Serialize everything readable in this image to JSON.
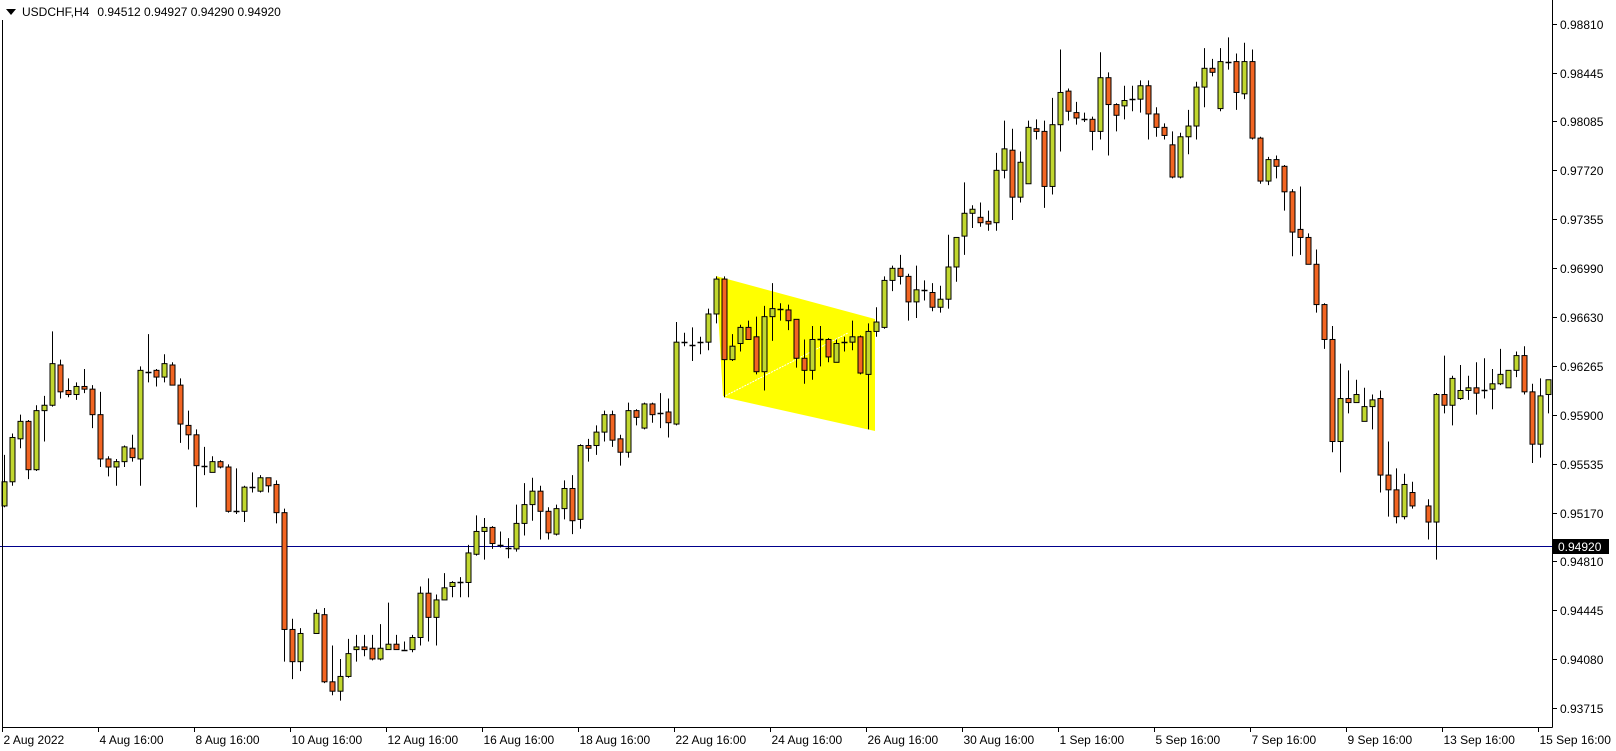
{
  "header": {
    "symbol_timeframe": "USDCHF,H4",
    "ohlc": "0.94512 0.94927 0.94290 0.94920",
    "icon": "triangle-down-icon"
  },
  "colors": {
    "bull": "#c1d72f",
    "bear": "#f26522",
    "outline": "#000000",
    "bid_line": "#00008b",
    "shading": "#ffff00",
    "bid_label_bg": "#000000",
    "bid_label_text": "#ffffff"
  },
  "chart_data": {
    "type": "candlestick",
    "title": "USDCHF,H4",
    "grid": false,
    "ylim": [
      0.9353,
      0.9908
    ],
    "bid_price": 0.9492,
    "bid_label": "0.94920",
    "y_ticks": [
      "0.98810",
      "0.98445",
      "0.98085",
      "0.97720",
      "0.97355",
      "0.96990",
      "0.96630",
      "0.96265",
      "0.95900",
      "0.95535",
      "0.95170",
      "0.94810",
      "0.94445",
      "0.94080",
      "0.93715"
    ],
    "x_ticks": [
      "2 Aug 2022",
      "4 Aug 16:00",
      "8 Aug 16:00",
      "10 Aug 16:00",
      "12 Aug 16:00",
      "16 Aug 16:00",
      "18 Aug 16:00",
      "22 Aug 16:00",
      "24 Aug 16:00",
      "26 Aug 16:00",
      "30 Aug 16:00",
      "1 Sep 16:00",
      "5 Sep 16:00",
      "7 Sep 16:00",
      "9 Sep 16:00",
      "13 Sep 16:00",
      "15 Sep 16:00"
    ],
    "candle_fields": [
      "open",
      "high",
      "low",
      "close"
    ],
    "candles": [
      [
        0.9522,
        0.956,
        0.9521,
        0.954
      ],
      [
        0.954,
        0.9576,
        0.9537,
        0.9573
      ],
      [
        0.9572,
        0.959,
        0.9565,
        0.9585
      ],
      [
        0.9585,
        0.9586,
        0.9542,
        0.9549
      ],
      [
        0.9549,
        0.9597,
        0.9548,
        0.9593
      ],
      [
        0.9593,
        0.9604,
        0.957,
        0.9597
      ],
      [
        0.9597,
        0.9652,
        0.9596,
        0.9628
      ],
      [
        0.9627,
        0.9631,
        0.9602,
        0.9607
      ],
      [
        0.9608,
        0.9617,
        0.9603,
        0.9605
      ],
      [
        0.9605,
        0.9614,
        0.9601,
        0.9611
      ],
      [
        0.9611,
        0.9624,
        0.9606,
        0.9609
      ],
      [
        0.9609,
        0.9612,
        0.958,
        0.959
      ],
      [
        0.959,
        0.9607,
        0.9551,
        0.9557
      ],
      [
        0.9557,
        0.9559,
        0.9544,
        0.9551
      ],
      [
        0.9551,
        0.9557,
        0.9537,
        0.9555
      ],
      [
        0.9555,
        0.9567,
        0.9551,
        0.9566
      ],
      [
        0.9565,
        0.9575,
        0.9555,
        0.9558
      ],
      [
        0.9557,
        0.9626,
        0.9537,
        0.9623
      ],
      [
        0.9622,
        0.965,
        0.9614,
        0.9622
      ],
      [
        0.9623,
        0.9624,
        0.9611,
        0.9618
      ],
      [
        0.9618,
        0.9635,
        0.9614,
        0.9628
      ],
      [
        0.9627,
        0.9629,
        0.9612,
        0.9612
      ],
      [
        0.9612,
        0.9617,
        0.9569,
        0.9583
      ],
      [
        0.9582,
        0.9593,
        0.9564,
        0.9575
      ],
      [
        0.9575,
        0.9579,
        0.9521,
        0.9552
      ],
      [
        0.9552,
        0.9566,
        0.9545,
        0.9552
      ],
      [
        0.9547,
        0.9559,
        0.9547,
        0.9555
      ],
      [
        0.9555,
        0.9556,
        0.955,
        0.9551
      ],
      [
        0.9551,
        0.9553,
        0.9517,
        0.9518
      ],
      [
        0.9518,
        0.955,
        0.9516,
        0.9518
      ],
      [
        0.9518,
        0.9537,
        0.951,
        0.9536
      ],
      [
        0.9536,
        0.9547,
        0.9532,
        0.9536
      ],
      [
        0.9533,
        0.9545,
        0.9532,
        0.9543
      ],
      [
        0.9543,
        0.9543,
        0.9532,
        0.9537
      ],
      [
        0.9538,
        0.9541,
        0.9509,
        0.9517
      ],
      [
        0.9517,
        0.952,
        0.9406,
        0.943
      ],
      [
        0.943,
        0.9438,
        0.9393,
        0.9406
      ],
      [
        0.9406,
        0.9431,
        0.9399,
        0.9427
      ],
      null,
      [
        0.9427,
        0.9445,
        0.9427,
        0.9442
      ],
      [
        0.9441,
        0.9446,
        0.939,
        0.9391
      ],
      [
        0.9391,
        0.9418,
        0.9381,
        0.9384
      ],
      [
        0.9384,
        0.9408,
        0.9377,
        0.9395
      ],
      [
        0.9395,
        0.9423,
        0.9394,
        0.9412
      ],
      [
        0.9415,
        0.9426,
        0.9406,
        0.9417
      ],
      [
        0.9417,
        0.9426,
        0.941,
        0.9415
      ],
      [
        0.9416,
        0.9426,
        0.9407,
        0.9408
      ],
      [
        0.9408,
        0.9434,
        0.9407,
        0.9416
      ],
      [
        0.9415,
        0.945,
        0.9415,
        0.9419
      ],
      [
        0.9419,
        0.9426,
        0.9415,
        0.9415
      ],
      [
        0.9415,
        0.9421,
        0.9415,
        0.9415
      ],
      [
        0.9415,
        0.9426,
        0.9413,
        0.9424
      ],
      [
        0.9424,
        0.9462,
        0.9418,
        0.9457
      ],
      [
        0.9457,
        0.9468,
        0.9421,
        0.9439
      ],
      [
        0.9439,
        0.9456,
        0.9418,
        0.9452
      ],
      [
        0.9452,
        0.9472,
        0.9452,
        0.9461
      ],
      [
        0.9462,
        0.9466,
        0.9454,
        0.9465
      ],
      [
        0.9465,
        0.9469,
        0.9454,
        0.9465
      ],
      [
        0.9465,
        0.9493,
        0.9454,
        0.9487
      ],
      [
        0.9486,
        0.9515,
        0.9485,
        0.9503
      ],
      [
        0.9503,
        0.9513,
        0.9482,
        0.9506
      ],
      [
        0.9506,
        0.9507,
        0.949,
        0.9494
      ],
      [
        0.9493,
        0.9503,
        0.9491,
        0.9493
      ],
      [
        0.9491,
        0.9498,
        0.9483,
        0.949
      ],
      [
        0.949,
        0.9523,
        0.9488,
        0.9509
      ],
      [
        0.9509,
        0.9539,
        0.95,
        0.9523
      ],
      [
        0.9523,
        0.9543,
        0.9511,
        0.9533
      ],
      [
        0.9533,
        0.9537,
        0.9497,
        0.9518
      ],
      [
        0.9518,
        0.9521,
        0.9497,
        0.9502
      ],
      [
        0.9501,
        0.9523,
        0.95,
        0.952
      ],
      [
        0.952,
        0.9541,
        0.9512,
        0.9535
      ],
      [
        0.9535,
        0.9545,
        0.9501,
        0.9511
      ],
      [
        0.9512,
        0.9568,
        0.9505,
        0.9567
      ],
      [
        0.9567,
        0.9572,
        0.9555,
        0.9565
      ],
      [
        0.9567,
        0.9582,
        0.956,
        0.9577
      ],
      [
        0.9577,
        0.9593,
        0.957,
        0.959
      ],
      [
        0.959,
        0.9593,
        0.9566,
        0.9571
      ],
      [
        0.9572,
        0.9575,
        0.9552,
        0.9562
      ],
      [
        0.9562,
        0.9599,
        0.9558,
        0.9593
      ],
      [
        0.9593,
        0.9594,
        0.9582,
        0.9588
      ],
      [
        0.958,
        0.9599,
        0.9579,
        0.9598
      ],
      [
        0.9598,
        0.9599,
        0.9584,
        0.959
      ],
      [
        0.9591,
        0.9606,
        0.958,
        0.9591
      ],
      [
        0.9592,
        0.9602,
        0.9573,
        0.9584
      ],
      [
        0.9583,
        0.9659,
        0.9582,
        0.9644
      ],
      [
        0.9644,
        0.9651,
        0.9641,
        0.9643
      ],
      [
        0.9642,
        0.9655,
        0.963,
        0.9642
      ],
      [
        0.9643,
        0.9648,
        0.9635,
        0.9644
      ],
      [
        0.9644,
        0.9669,
        0.9638,
        0.9665
      ],
      [
        0.9665,
        0.9693,
        0.9658,
        0.9691
      ],
      [
        0.9691,
        0.9693,
        0.9603,
        0.9631
      ],
      [
        0.9631,
        0.965,
        0.963,
        0.9641
      ],
      [
        0.9643,
        0.9657,
        0.9637,
        0.9655
      ],
      [
        0.9655,
        0.966,
        0.9646,
        0.9646
      ],
      [
        0.9648,
        0.9663,
        0.962,
        0.9622
      ],
      [
        0.9622,
        0.9671,
        0.9608,
        0.9663
      ],
      [
        0.9663,
        0.9688,
        0.9645,
        0.9669
      ],
      [
        0.9669,
        0.9673,
        0.966,
        0.9668
      ],
      [
        0.9668,
        0.9672,
        0.9653,
        0.966
      ],
      [
        0.9661,
        0.9661,
        0.9625,
        0.9632
      ],
      [
        0.9632,
        0.9646,
        0.9613,
        0.9623
      ],
      [
        0.9623,
        0.9656,
        0.9616,
        0.9646
      ],
      [
        0.9646,
        0.9656,
        0.9626,
        0.9646
      ],
      [
        0.9646,
        0.9647,
        0.9629,
        0.9633
      ],
      [
        0.9629,
        0.9646,
        0.9629,
        0.9643
      ],
      [
        0.9643,
        0.9648,
        0.9637,
        0.9644
      ],
      [
        0.9644,
        0.966,
        0.9638,
        0.9648
      ],
      [
        0.9648,
        0.9649,
        0.962,
        0.9621
      ],
      [
        0.962,
        0.9658,
        0.9579,
        0.9652
      ],
      [
        0.9652,
        0.967,
        0.9648,
        0.9659
      ],
      [
        0.9655,
        0.9693,
        0.9654,
        0.969
      ],
      [
        0.969,
        0.9701,
        0.9682,
        0.9699
      ],
      [
        0.9699,
        0.9709,
        0.9687,
        0.9693
      ],
      [
        0.9693,
        0.9695,
        0.966,
        0.9674
      ],
      [
        0.9674,
        0.9701,
        0.9662,
        0.9683
      ],
      [
        0.9683,
        0.969,
        0.9675,
        0.9683
      ],
      [
        0.9681,
        0.9688,
        0.9667,
        0.967
      ],
      [
        0.967,
        0.9686,
        0.9666,
        0.9676
      ],
      [
        0.9676,
        0.9724,
        0.9669,
        0.97
      ],
      [
        0.97,
        0.9722,
        0.9689,
        0.9722
      ],
      [
        0.9723,
        0.9763,
        0.9709,
        0.974
      ],
      [
        0.974,
        0.9746,
        0.9729,
        0.9743
      ],
      [
        0.9737,
        0.9748,
        0.973,
        0.9733
      ],
      [
        0.9734,
        0.9742,
        0.9727,
        0.9732
      ],
      [
        0.9733,
        0.9785,
        0.9727,
        0.9772
      ],
      [
        0.9772,
        0.9809,
        0.9766,
        0.9788
      ],
      [
        0.9787,
        0.9803,
        0.9735,
        0.9752
      ],
      [
        0.9752,
        0.9786,
        0.9748,
        0.9778
      ],
      [
        0.9762,
        0.9809,
        0.9762,
        0.9804
      ],
      [
        0.9803,
        0.981,
        0.9795,
        0.9801
      ],
      [
        0.9801,
        0.9809,
        0.9744,
        0.976
      ],
      [
        0.976,
        0.9826,
        0.9754,
        0.9806
      ],
      [
        0.9806,
        0.9862,
        0.9786,
        0.983
      ],
      [
        0.9831,
        0.9833,
        0.9809,
        0.9816
      ],
      [
        0.9815,
        0.9823,
        0.9806,
        0.9811
      ],
      [
        0.981,
        0.9815,
        0.9808,
        0.981
      ],
      [
        0.981,
        0.9812,
        0.9787,
        0.9801
      ],
      [
        0.9801,
        0.986,
        0.9795,
        0.9841
      ],
      [
        0.9841,
        0.9845,
        0.9783,
        0.9821
      ],
      [
        0.9821,
        0.9822,
        0.9801,
        0.9813
      ],
      [
        0.982,
        0.9835,
        0.981,
        0.9824
      ],
      [
        0.9824,
        0.9835,
        0.9816,
        0.9825
      ],
      [
        0.9825,
        0.9839,
        0.9815,
        0.9835
      ],
      [
        0.9835,
        0.9839,
        0.9795,
        0.9814
      ],
      [
        0.9814,
        0.9819,
        0.9797,
        0.9804
      ],
      [
        0.9804,
        0.9807,
        0.9795,
        0.9798
      ],
      [
        0.9791,
        0.9801,
        0.9766,
        0.9767
      ],
      [
        0.9767,
        0.98,
        0.9766,
        0.9797
      ],
      [
        0.9797,
        0.9817,
        0.9784,
        0.9805
      ],
      [
        0.9805,
        0.9838,
        0.9795,
        0.9834
      ],
      [
        0.9834,
        0.9863,
        0.9819,
        0.9848
      ],
      [
        0.9848,
        0.9855,
        0.9842,
        0.9845
      ],
      [
        0.9818,
        0.9863,
        0.9816,
        0.9853
      ],
      [
        0.9853,
        0.9871,
        0.9847,
        0.9853
      ],
      [
        0.9853,
        0.9859,
        0.9817,
        0.983
      ],
      [
        0.9829,
        0.9867,
        0.9825,
        0.9853
      ],
      [
        0.9853,
        0.9862,
        0.9795,
        0.9796
      ],
      [
        0.9796,
        0.9797,
        0.9762,
        0.9764
      ],
      [
        0.9764,
        0.9782,
        0.9761,
        0.978
      ],
      [
        0.978,
        0.9783,
        0.9766,
        0.9775
      ],
      [
        0.9775,
        0.9776,
        0.9742,
        0.9756
      ],
      [
        0.9756,
        0.9758,
        0.9708,
        0.9726
      ],
      [
        0.9728,
        0.976,
        0.9709,
        0.9722
      ],
      [
        0.9722,
        0.9725,
        0.9702,
        0.9702
      ],
      [
        0.9702,
        0.9713,
        0.9666,
        0.9672
      ],
      [
        0.9672,
        0.9673,
        0.9639,
        0.9646
      ],
      [
        0.9646,
        0.9656,
        0.9562,
        0.957
      ],
      [
        0.957,
        0.9628,
        0.9547,
        0.9602
      ],
      [
        0.9602,
        0.9623,
        0.9591,
        0.9599
      ],
      [
        0.9599,
        0.9616,
        0.9599,
        0.9605
      ],
      [
        0.9585,
        0.961,
        0.9585,
        0.9596
      ],
      [
        0.9596,
        0.9605,
        0.9579,
        0.9601
      ],
      [
        0.9602,
        0.9608,
        0.9532,
        0.9545
      ],
      [
        0.9545,
        0.957,
        0.9514,
        0.9534
      ],
      [
        0.9534,
        0.955,
        0.9509,
        0.9514
      ],
      [
        0.9514,
        0.9546,
        0.9512,
        0.9538
      ],
      [
        0.9532,
        0.954,
        0.952,
        0.9522
      ],
      null,
      [
        0.9522,
        0.9527,
        0.9497,
        0.951
      ],
      [
        0.951,
        0.9606,
        0.9482,
        0.9605
      ],
      [
        0.9605,
        0.9634,
        0.9591,
        0.9597
      ],
      [
        0.9597,
        0.9619,
        0.9582,
        0.9617
      ],
      [
        0.9602,
        0.9627,
        0.9601,
        0.9608
      ],
      [
        0.9608,
        0.9619,
        0.9601,
        0.961
      ],
      [
        0.961,
        0.9629,
        0.959,
        0.9606
      ],
      [
        0.9607,
        0.9632,
        0.9602,
        0.9608
      ],
      [
        0.9609,
        0.9624,
        0.9594,
        0.9613
      ],
      [
        0.9613,
        0.9639,
        0.9612,
        0.962
      ],
      [
        0.961,
        0.9623,
        0.961,
        0.9623
      ],
      [
        0.9623,
        0.9637,
        0.9618,
        0.9634
      ],
      [
        0.9634,
        0.9641,
        0.9605,
        0.9607
      ],
      [
        0.9607,
        0.9613,
        0.9554,
        0.9568
      ],
      [
        0.9568,
        0.9617,
        0.9558,
        0.9604
      ],
      [
        0.9605,
        0.9616,
        0.9591,
        0.9616
      ]
    ]
  }
}
